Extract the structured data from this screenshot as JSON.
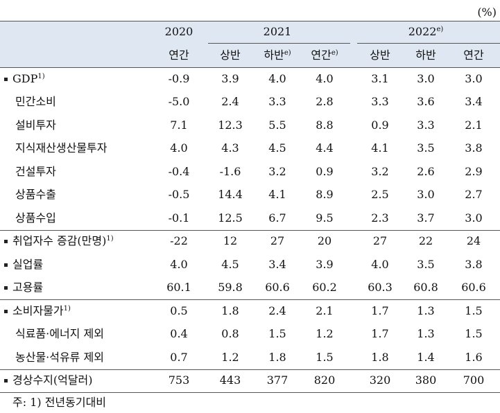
{
  "header": {
    "unit": "(%)",
    "years": [
      {
        "label": "2020"
      },
      {
        "label": "2021"
      },
      {
        "label": "2022",
        "note": "e)"
      }
    ],
    "periods": [
      {
        "label": "연간"
      },
      {
        "label": "상반"
      },
      {
        "label": "하반",
        "note": "e)"
      },
      {
        "label": "연간",
        "note": "e)"
      },
      {
        "label": "상반"
      },
      {
        "label": "하반"
      },
      {
        "label": "연간"
      }
    ]
  },
  "table": {
    "sections": [
      {
        "rows": [
          {
            "label": "GDP",
            "note": "1)",
            "values": [
              "-0.9",
              "3.9",
              "4.0",
              "4.0",
              "3.1",
              "3.0",
              "3.0"
            ],
            "sub": [
              {
                "label": "민간소비",
                "values": [
                  "-5.0",
                  "2.4",
                  "3.3",
                  "2.8",
                  "3.3",
                  "3.6",
                  "3.4"
                ]
              },
              {
                "label": "설비투자",
                "values": [
                  "7.1",
                  "12.3",
                  "5.5",
                  "8.8",
                  "0.9",
                  "3.3",
                  "2.1"
                ]
              },
              {
                "label": "지식재산생산물투자",
                "values": [
                  "4.0",
                  "4.3",
                  "4.5",
                  "4.4",
                  "4.1",
                  "3.5",
                  "3.8"
                ]
              },
              {
                "label": "건설투자",
                "values": [
                  "-0.4",
                  "-1.6",
                  "3.2",
                  "0.9",
                  "3.2",
                  "2.6",
                  "2.9"
                ]
              },
              {
                "label": "상품수출",
                "values": [
                  "-0.5",
                  "14.4",
                  "4.1",
                  "8.9",
                  "2.5",
                  "3.0",
                  "2.7"
                ]
              },
              {
                "label": "상품수입",
                "values": [
                  "-0.1",
                  "12.5",
                  "6.7",
                  "9.5",
                  "2.3",
                  "3.7",
                  "3.0"
                ]
              }
            ]
          }
        ]
      },
      {
        "rows": [
          {
            "label": "취업자수 증감(만명)",
            "note": "1)",
            "values": [
              "-22",
              "12",
              "27",
              "20",
              "27",
              "22",
              "24"
            ]
          },
          {
            "label": "실업률",
            "values": [
              "4.0",
              "4.5",
              "3.4",
              "3.9",
              "4.0",
              "3.5",
              "3.8"
            ]
          },
          {
            "label": "고용률",
            "values": [
              "60.1",
              "59.8",
              "60.6",
              "60.2",
              "60.3",
              "60.8",
              "60.6"
            ]
          }
        ]
      },
      {
        "rows": [
          {
            "label": "소비자물가",
            "note": "1)",
            "values": [
              "0.5",
              "1.8",
              "2.4",
              "2.1",
              "1.7",
              "1.3",
              "1.5"
            ],
            "sub": [
              {
                "label": "식료품·에너지 제외",
                "values": [
                  "0.4",
                  "0.8",
                  "1.5",
                  "1.2",
                  "1.7",
                  "1.3",
                  "1.5"
                ]
              },
              {
                "label": "농산물·석유류 제외",
                "values": [
                  "0.7",
                  "1.2",
                  "1.8",
                  "1.5",
                  "1.8",
                  "1.4",
                  "1.6"
                ]
              }
            ]
          }
        ]
      },
      {
        "rows": [
          {
            "label": "경상수지(억달러)",
            "values": [
              "753",
              "443",
              "377",
              "820",
              "320",
              "380",
              "700"
            ]
          }
        ]
      }
    ]
  },
  "footer": {
    "note": "주: 1) 전년동기대비"
  }
}
